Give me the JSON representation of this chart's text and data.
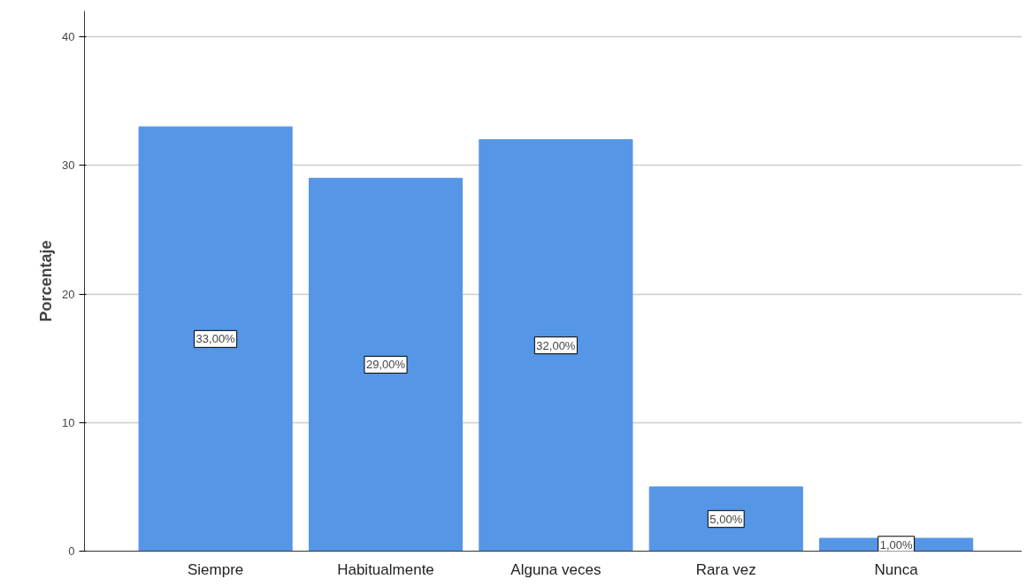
{
  "chart_data": {
    "type": "bar",
    "ylabel": "Porcentaje",
    "categories": [
      "Siempre",
      "Habitualmente",
      "Alguna veces",
      "Rara vez",
      "Nunca"
    ],
    "values": [
      33,
      29,
      32,
      5,
      1
    ],
    "value_labels": [
      "33,00%",
      "29,00%",
      "32,00%",
      "5,00%",
      "1,00%"
    ],
    "color": "#5596e6",
    "ylim": [
      0,
      42
    ],
    "yticks": [
      0,
      10,
      20,
      30,
      40
    ],
    "grid": "y"
  }
}
